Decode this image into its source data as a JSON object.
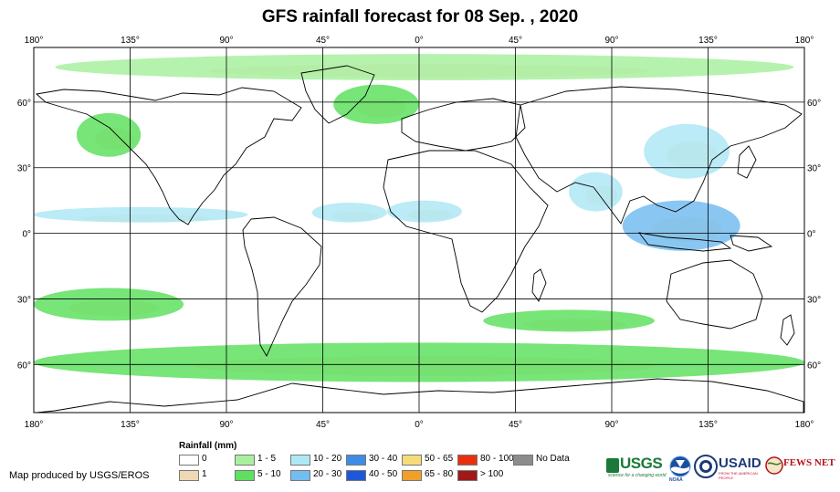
{
  "title": "GFS rainfall forecast for 08 Sep. , 2020",
  "map": {
    "lon_ticks_top": [
      "180°",
      "135°",
      "90°",
      "45°",
      "0°",
      "45°",
      "90°",
      "135°",
      "180°"
    ],
    "lon_ticks_bottom": [
      "180°",
      "135°",
      "90°",
      "45°",
      "0°",
      "45°",
      "90°",
      "135°",
      "180°"
    ],
    "lat_ticks_left": [
      "60°",
      "30°",
      "0°",
      "30°",
      "60°"
    ],
    "lat_ticks_right": [
      "60°",
      "30°",
      "0°",
      "30°",
      "60°"
    ],
    "lon_values": [
      -180,
      -135,
      -90,
      -45,
      0,
      45,
      90,
      135,
      180
    ],
    "lat_values": [
      60,
      30,
      0,
      -30,
      -60
    ],
    "lat_extent": [
      -82,
      85
    ],
    "colors": {
      "ocean": "#ffffff",
      "land_outline": "#000000",
      "graticule": "#000000"
    }
  },
  "rain_regions": [
    {
      "name": "arctic-band",
      "lon": [
        -170,
        175
      ],
      "lat": [
        70,
        82
      ],
      "class": 1
    },
    {
      "name": "north-pacific-storm",
      "lon": [
        -160,
        -130
      ],
      "lat": [
        35,
        55
      ],
      "class": 2
    },
    {
      "name": "north-atlantic-storm",
      "lon": [
        -40,
        0
      ],
      "lat": [
        50,
        68
      ],
      "class": 2
    },
    {
      "name": "itcz-pacific",
      "lon": [
        -180,
        -80
      ],
      "lat": [
        5,
        12
      ],
      "class": 3
    },
    {
      "name": "itcz-atlantic",
      "lon": [
        -50,
        -15
      ],
      "lat": [
        5,
        14
      ],
      "class": 3
    },
    {
      "name": "west-africa",
      "lon": [
        -15,
        20
      ],
      "lat": [
        5,
        15
      ],
      "class": 3
    },
    {
      "name": "india-monsoon",
      "lon": [
        70,
        95
      ],
      "lat": [
        10,
        28
      ],
      "class": 3
    },
    {
      "name": "maritime-continent",
      "lon": [
        95,
        150
      ],
      "lat": [
        -8,
        15
      ],
      "class": 4
    },
    {
      "name": "south-indian-ocean-band",
      "lon": [
        30,
        110
      ],
      "lat": [
        -45,
        -35
      ],
      "class": 2
    },
    {
      "name": "southern-ocean-band",
      "lon": [
        -180,
        180
      ],
      "lat": [
        -68,
        -50
      ],
      "class": 2
    },
    {
      "name": "south-pacific-band",
      "lon": [
        -180,
        -110
      ],
      "lat": [
        -40,
        -25
      ],
      "class": 2
    },
    {
      "name": "east-asia",
      "lon": [
        105,
        145
      ],
      "lat": [
        25,
        50
      ],
      "class": 3
    }
  ],
  "legend": {
    "title": "Rainfall (mm)",
    "items": [
      {
        "label": "0",
        "color": "#ffffff"
      },
      {
        "label": "1",
        "color": "#eed9b4"
      },
      {
        "label": "1 - 5",
        "color": "#a8f0a0"
      },
      {
        "label": "5 - 10",
        "color": "#5fe060"
      },
      {
        "label": "10 - 20",
        "color": "#aee8f5"
      },
      {
        "label": "20 - 30",
        "color": "#74bdf0"
      },
      {
        "label": "30 - 40",
        "color": "#3e8ce8"
      },
      {
        "label": "40 - 50",
        "color": "#1e58d8"
      },
      {
        "label": "50 - 65",
        "color": "#f6dc78"
      },
      {
        "label": "65 - 80",
        "color": "#f0a028"
      },
      {
        "label": "80 - 100",
        "color": "#e83010"
      },
      {
        "label": "> 100",
        "color": "#a01818"
      },
      {
        "label": "No Data",
        "color": "#8c8c8c"
      }
    ]
  },
  "credit": "Map produced by USGS/EROS",
  "logos": {
    "usgs": "USGS",
    "usgs_tagline": "science for a changing world",
    "noaa": "NOAA",
    "usaid": "USAID",
    "usaid_tagline": "FROM THE AMERICAN PEOPLE",
    "fewsnet": "FEWS NET"
  }
}
